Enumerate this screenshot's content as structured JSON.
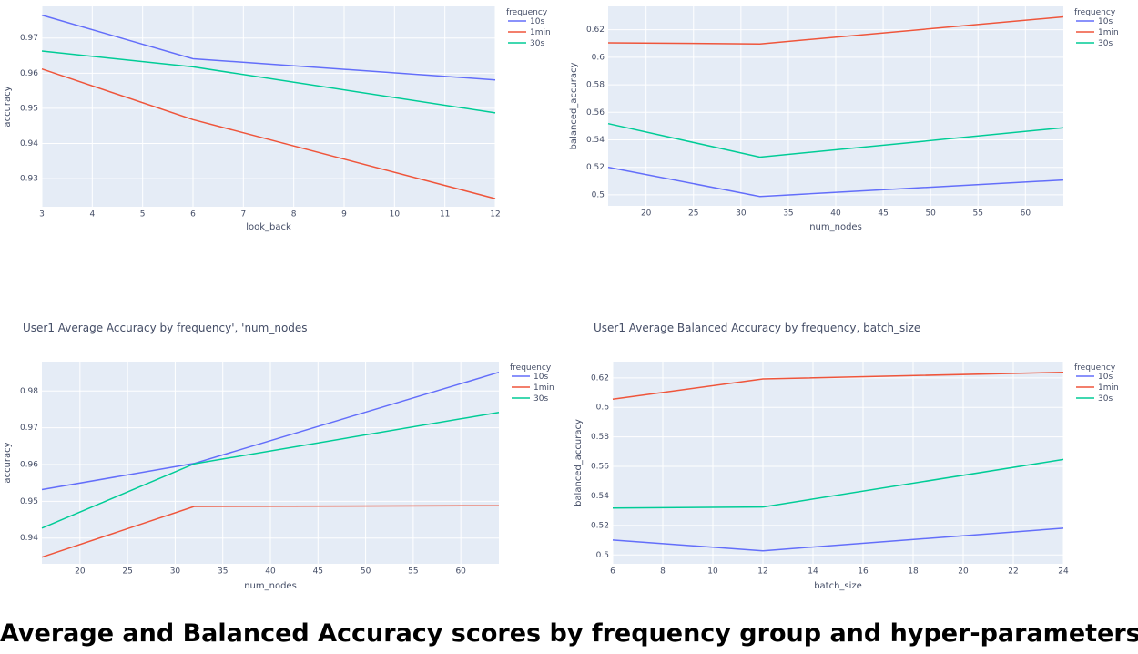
{
  "caption": "Average and Balanced Accuracy scores by frequency group and hyper-parameters",
  "colors": {
    "plot_bg": "#e5ecf6",
    "grid": "#ffffff",
    "text": "#444d66"
  },
  "chart_data": [
    {
      "type": "line",
      "title": "",
      "xlabel": "look_back",
      "ylabel": "accuracy",
      "xlim": [
        3,
        12
      ],
      "ylim": [
        0.922,
        0.979
      ],
      "xticks": [
        3,
        4,
        5,
        6,
        7,
        8,
        9,
        10,
        11,
        12
      ],
      "yticks": [
        0.93,
        0.94,
        0.95,
        0.96,
        0.97
      ],
      "legend_title": "frequency",
      "legend_position": "top-right",
      "series": [
        {
          "name": "10s",
          "color": "#636efa",
          "x": [
            3,
            6,
            12
          ],
          "y": [
            0.9765,
            0.9641,
            0.9581
          ]
        },
        {
          "name": "1min",
          "color": "#ef553b",
          "x": [
            3,
            6,
            12
          ],
          "y": [
            0.9612,
            0.9468,
            0.9243
          ]
        },
        {
          "name": "30s",
          "color": "#00cc96",
          "x": [
            3,
            6,
            12
          ],
          "y": [
            0.9663,
            0.9618,
            0.9487
          ]
        }
      ]
    },
    {
      "type": "line",
      "title": "",
      "xlabel": "num_nodes",
      "ylabel": "balanced_accuracy",
      "xlim": [
        16,
        64
      ],
      "ylim": [
        0.492,
        0.637
      ],
      "xticks": [
        20,
        25,
        30,
        35,
        40,
        45,
        50,
        55,
        60
      ],
      "yticks": [
        0.5,
        0.52,
        0.54,
        0.56,
        0.58,
        0.6,
        0.62
      ],
      "legend_title": "frequency",
      "legend_position": "top-right",
      "series": [
        {
          "name": "10s",
          "color": "#636efa",
          "x": [
            16,
            32,
            64
          ],
          "y": [
            0.5201,
            0.4988,
            0.5108
          ]
        },
        {
          "name": "1min",
          "color": "#ef553b",
          "x": [
            16,
            32,
            64
          ],
          "y": [
            0.6105,
            0.6097,
            0.6294
          ]
        },
        {
          "name": "30s",
          "color": "#00cc96",
          "x": [
            16,
            32,
            64
          ],
          "y": [
            0.5518,
            0.5274,
            0.5488
          ]
        }
      ]
    },
    {
      "type": "line",
      "title": "User1 Average Accuracy by frequency', 'num_nodes",
      "xlabel": "num_nodes",
      "ylabel": "accuracy",
      "xlim": [
        16,
        64
      ],
      "ylim": [
        0.933,
        0.988
      ],
      "xticks": [
        20,
        25,
        30,
        35,
        40,
        45,
        50,
        55,
        60
      ],
      "yticks": [
        0.94,
        0.95,
        0.96,
        0.97,
        0.98
      ],
      "legend_title": "frequency",
      "legend_position": "top-right",
      "series": [
        {
          "name": "10s",
          "color": "#636efa",
          "x": [
            16,
            32,
            64
          ],
          "y": [
            0.9532,
            0.9603,
            0.9851
          ]
        },
        {
          "name": "1min",
          "color": "#ef553b",
          "x": [
            16,
            32,
            64
          ],
          "y": [
            0.9348,
            0.9486,
            0.9488
          ]
        },
        {
          "name": "30s",
          "color": "#00cc96",
          "x": [
            16,
            32,
            64
          ],
          "y": [
            0.9427,
            0.9602,
            0.9742
          ]
        }
      ]
    },
    {
      "type": "line",
      "title": "User1 Average Balanced Accuracy by frequency, batch_size",
      "xlabel": "batch_size",
      "ylabel": "balanced_accuracy",
      "xlim": [
        6,
        24
      ],
      "ylim": [
        0.494,
        0.631
      ],
      "xticks": [
        6,
        8,
        10,
        12,
        14,
        16,
        18,
        20,
        22,
        24
      ],
      "yticks": [
        0.5,
        0.52,
        0.54,
        0.56,
        0.58,
        0.6,
        0.62
      ],
      "legend_title": "frequency",
      "legend_position": "top-right",
      "series": [
        {
          "name": "10s",
          "color": "#636efa",
          "x": [
            6,
            12,
            24
          ],
          "y": [
            0.5101,
            0.5028,
            0.5181
          ]
        },
        {
          "name": "1min",
          "color": "#ef553b",
          "x": [
            6,
            12,
            24
          ],
          "y": [
            0.6056,
            0.6193,
            0.6238
          ]
        },
        {
          "name": "30s",
          "color": "#00cc96",
          "x": [
            6,
            12,
            24
          ],
          "y": [
            0.5318,
            0.5325,
            0.5647
          ]
        }
      ]
    }
  ]
}
